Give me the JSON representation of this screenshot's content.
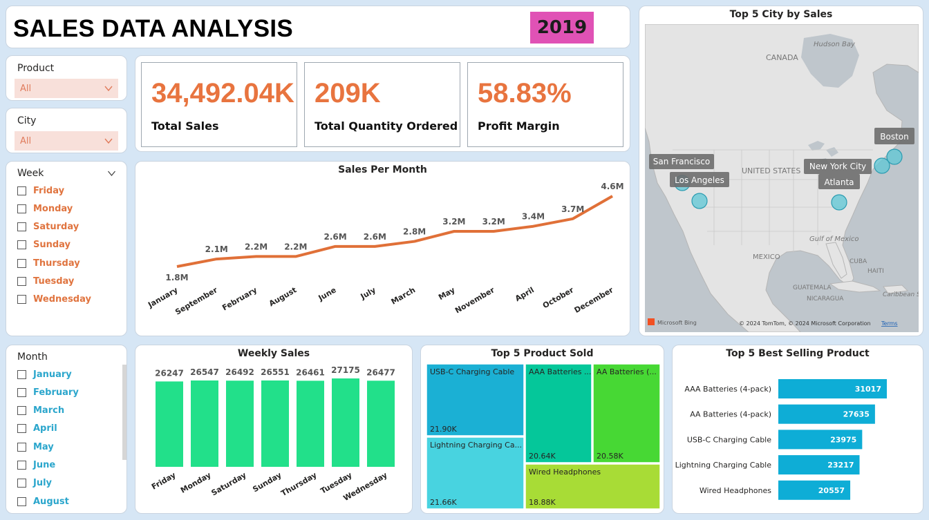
{
  "header": {
    "title": "SALES DATA ANALYSIS",
    "year": "2019"
  },
  "slicers": {
    "product": {
      "label": "Product",
      "value": "All"
    },
    "city": {
      "label": "City",
      "value": "All"
    }
  },
  "kpis": [
    {
      "value": "34,492.04K",
      "label": "Total Sales"
    },
    {
      "value": "209K",
      "label": "Total Quantity Ordered"
    },
    {
      "value": "58.83%",
      "label": "Profit Margin"
    }
  ],
  "week_slicer": {
    "label": "Week",
    "items": [
      "Friday",
      "Monday",
      "Saturday",
      "Sunday",
      "Thursday",
      "Tuesday",
      "Wednesday"
    ]
  },
  "month_slicer": {
    "label": "Month",
    "items": [
      "January",
      "February",
      "March",
      "April",
      "May",
      "June",
      "July",
      "August"
    ]
  },
  "map": {
    "title": "Top 5 City by Sales",
    "labels": {
      "canada": "CANADA",
      "hudson": "Hudson Bay",
      "us": "UNITED STATES",
      "gulf": "Gulf of Mexico",
      "mexico": "MEXICO",
      "cuba": "CUBA",
      "haiti": "HAITI",
      "guatemala": "GUATEMALA",
      "nicaragua": "NICARAGUA",
      "caribbean": "Caribbean Sea"
    },
    "cities": [
      "San Francisco",
      "Los Angeles",
      "New York City",
      "Atlanta",
      "Boston"
    ],
    "bing": "Microsoft Bing",
    "copyright": "© 2024 TomTom, © 2024 Microsoft Corporation",
    "terms": "Terms"
  },
  "chart_data": [
    {
      "type": "line",
      "title": "Sales Per Month",
      "categories": [
        "January",
        "September",
        "February",
        "August",
        "June",
        "July",
        "March",
        "May",
        "November",
        "April",
        "October",
        "December"
      ],
      "values": [
        1.8,
        2.1,
        2.2,
        2.2,
        2.6,
        2.6,
        2.8,
        3.2,
        3.2,
        3.4,
        3.7,
        4.6
      ],
      "data_labels": [
        "1.8M",
        "2.1M",
        "2.2M",
        "2.2M",
        "2.6M",
        "2.6M",
        "2.8M",
        "3.2M",
        "3.2M",
        "3.4M",
        "3.7M",
        "4.6M"
      ],
      "color": "#e07038"
    },
    {
      "type": "bar",
      "title": "Weekly Sales",
      "categories": [
        "Friday",
        "Monday",
        "Saturday",
        "Sunday",
        "Thursday",
        "Tuesday",
        "Wednesday"
      ],
      "values": [
        26247,
        26547,
        26492,
        26551,
        26461,
        27175,
        26477
      ],
      "color": "#22e08a"
    },
    {
      "type": "treemap",
      "title": "Top 5 Product Sold",
      "items": [
        {
          "name": "USB-C Charging Cable",
          "label": "USB-C Charging Cable",
          "value_label": "21.90K",
          "value": 21.9,
          "color": "#1bb0d4"
        },
        {
          "name": "Lightning Charging Cable",
          "label": "Lightning Charging Ca...",
          "value_label": "21.66K",
          "value": 21.66,
          "color": "#48d3e0"
        },
        {
          "name": "AAA Batteries (4-pack)",
          "label": "AAA Batteries ...",
          "value_label": "20.64K",
          "value": 20.64,
          "color": "#05c79a"
        },
        {
          "name": "AA Batteries (4-pack)",
          "label": "AA Batteries (...",
          "value_label": "20.58K",
          "value": 20.58,
          "color": "#47d834"
        },
        {
          "name": "Wired Headphones",
          "label": "Wired Headphones",
          "value_label": "18.88K",
          "value": 18.88,
          "color": "#a8dc36"
        }
      ]
    },
    {
      "type": "bar",
      "orientation": "horizontal",
      "title": "Top 5 Best Selling Product",
      "categories": [
        "AAA Batteries (4-pack)",
        "AA Batteries (4-pack)",
        "USB-C Charging Cable",
        "Lightning Charging Cable",
        "Wired Headphones"
      ],
      "values": [
        31017,
        27635,
        23975,
        23217,
        20557
      ],
      "color": "#0eadd6"
    }
  ]
}
